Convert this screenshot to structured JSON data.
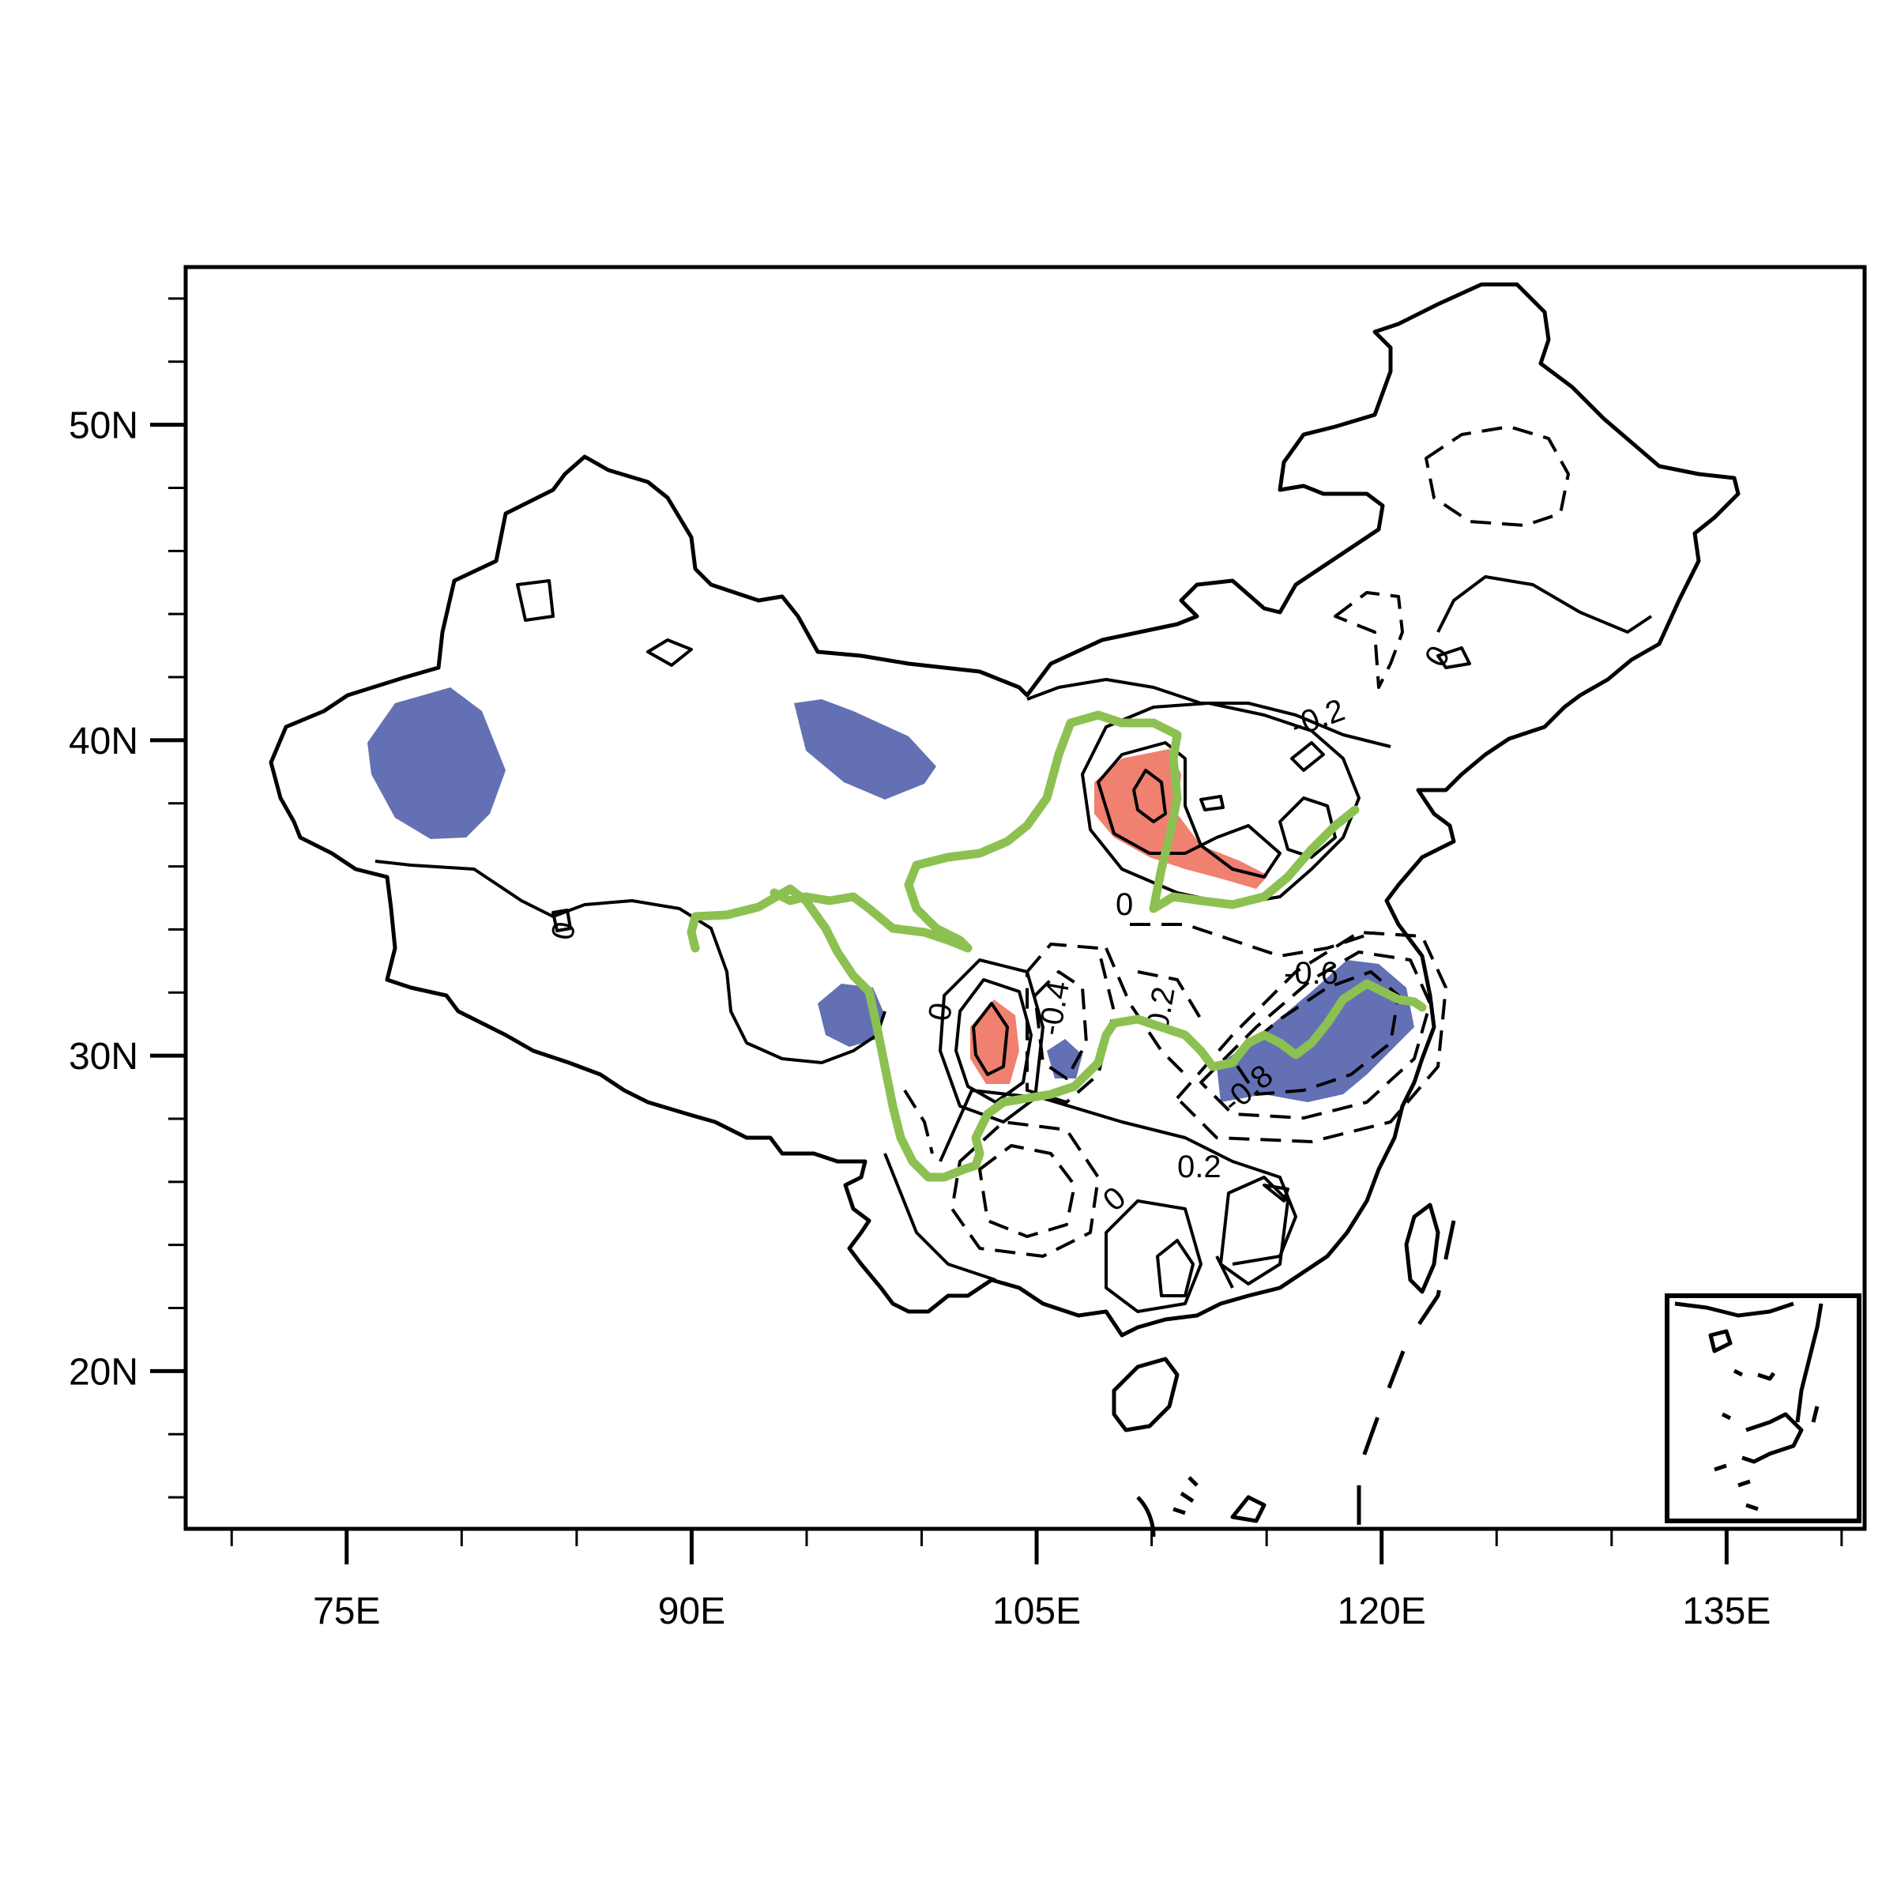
{
  "map": {
    "lon_range": [
      68,
      141
    ],
    "lat_range": [
      15,
      55
    ],
    "x_ticks": [
      {
        "lon": 75,
        "label": "75E"
      },
      {
        "lon": 90,
        "label": "90E"
      },
      {
        "lon": 105,
        "label": "105E"
      },
      {
        "lon": 120,
        "label": "120E"
      },
      {
        "lon": 135,
        "label": "135E"
      }
    ],
    "y_ticks": [
      {
        "lat": 20,
        "label": "20N"
      },
      {
        "lat": 30,
        "label": "30N"
      },
      {
        "lat": 40,
        "label": "40N"
      },
      {
        "lat": 50,
        "label": "50N"
      }
    ],
    "minor_x_every": 5,
    "minor_y_every": 2,
    "contour_labels": [
      "0",
      "0",
      "0",
      "0",
      "-0.2",
      "-0.6",
      "0.2",
      "0",
      "-0.4",
      "0.2",
      "-0.8"
    ],
    "colors": {
      "positive_shading": "#f08070",
      "negative_shading": "#6470b4",
      "river": "#8cc152",
      "contour": "#000000"
    },
    "inset": "South China Sea islands inset"
  }
}
